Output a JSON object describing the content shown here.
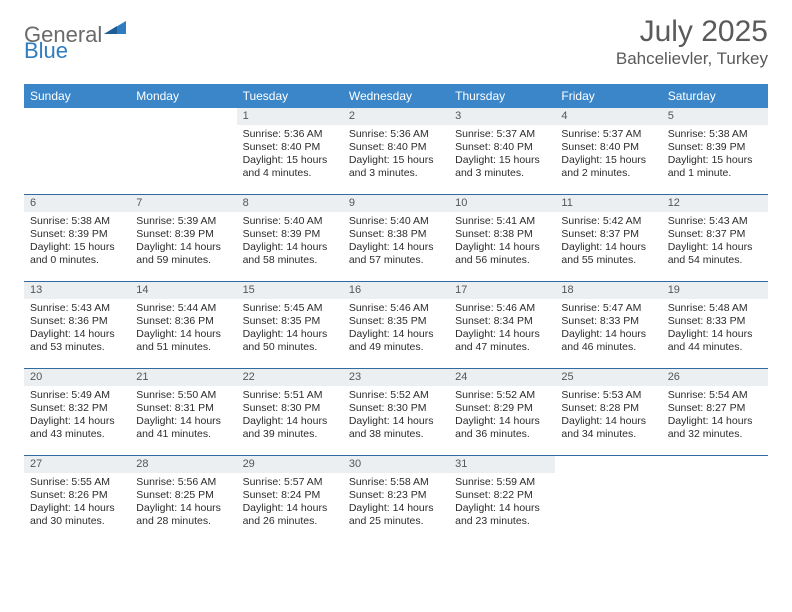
{
  "logo": {
    "general": "General",
    "blue": "Blue"
  },
  "title": {
    "month": "July 2025",
    "location": "Bahcelievler, Turkey"
  },
  "colors": {
    "header_bg": "#3a86c8",
    "header_text": "#ffffff",
    "row_divider": "#2f6aa3",
    "daynum_bg": "#eceff1",
    "body_text": "#2c2c2c",
    "logo_gray": "#6a6a6a",
    "logo_blue": "#2f7dc0",
    "title_text": "#5a5a5a"
  },
  "weekdays": [
    "Sunday",
    "Monday",
    "Tuesday",
    "Wednesday",
    "Thursday",
    "Friday",
    "Saturday"
  ],
  "weeks": [
    [
      null,
      null,
      {
        "n": "1",
        "sr": "Sunrise: 5:36 AM",
        "ss": "Sunset: 8:40 PM",
        "d1": "Daylight: 15 hours",
        "d2": "and 4 minutes."
      },
      {
        "n": "2",
        "sr": "Sunrise: 5:36 AM",
        "ss": "Sunset: 8:40 PM",
        "d1": "Daylight: 15 hours",
        "d2": "and 3 minutes."
      },
      {
        "n": "3",
        "sr": "Sunrise: 5:37 AM",
        "ss": "Sunset: 8:40 PM",
        "d1": "Daylight: 15 hours",
        "d2": "and 3 minutes."
      },
      {
        "n": "4",
        "sr": "Sunrise: 5:37 AM",
        "ss": "Sunset: 8:40 PM",
        "d1": "Daylight: 15 hours",
        "d2": "and 2 minutes."
      },
      {
        "n": "5",
        "sr": "Sunrise: 5:38 AM",
        "ss": "Sunset: 8:39 PM",
        "d1": "Daylight: 15 hours",
        "d2": "and 1 minute."
      }
    ],
    [
      {
        "n": "6",
        "sr": "Sunrise: 5:38 AM",
        "ss": "Sunset: 8:39 PM",
        "d1": "Daylight: 15 hours",
        "d2": "and 0 minutes."
      },
      {
        "n": "7",
        "sr": "Sunrise: 5:39 AM",
        "ss": "Sunset: 8:39 PM",
        "d1": "Daylight: 14 hours",
        "d2": "and 59 minutes."
      },
      {
        "n": "8",
        "sr": "Sunrise: 5:40 AM",
        "ss": "Sunset: 8:39 PM",
        "d1": "Daylight: 14 hours",
        "d2": "and 58 minutes."
      },
      {
        "n": "9",
        "sr": "Sunrise: 5:40 AM",
        "ss": "Sunset: 8:38 PM",
        "d1": "Daylight: 14 hours",
        "d2": "and 57 minutes."
      },
      {
        "n": "10",
        "sr": "Sunrise: 5:41 AM",
        "ss": "Sunset: 8:38 PM",
        "d1": "Daylight: 14 hours",
        "d2": "and 56 minutes."
      },
      {
        "n": "11",
        "sr": "Sunrise: 5:42 AM",
        "ss": "Sunset: 8:37 PM",
        "d1": "Daylight: 14 hours",
        "d2": "and 55 minutes."
      },
      {
        "n": "12",
        "sr": "Sunrise: 5:43 AM",
        "ss": "Sunset: 8:37 PM",
        "d1": "Daylight: 14 hours",
        "d2": "and 54 minutes."
      }
    ],
    [
      {
        "n": "13",
        "sr": "Sunrise: 5:43 AM",
        "ss": "Sunset: 8:36 PM",
        "d1": "Daylight: 14 hours",
        "d2": "and 53 minutes."
      },
      {
        "n": "14",
        "sr": "Sunrise: 5:44 AM",
        "ss": "Sunset: 8:36 PM",
        "d1": "Daylight: 14 hours",
        "d2": "and 51 minutes."
      },
      {
        "n": "15",
        "sr": "Sunrise: 5:45 AM",
        "ss": "Sunset: 8:35 PM",
        "d1": "Daylight: 14 hours",
        "d2": "and 50 minutes."
      },
      {
        "n": "16",
        "sr": "Sunrise: 5:46 AM",
        "ss": "Sunset: 8:35 PM",
        "d1": "Daylight: 14 hours",
        "d2": "and 49 minutes."
      },
      {
        "n": "17",
        "sr": "Sunrise: 5:46 AM",
        "ss": "Sunset: 8:34 PM",
        "d1": "Daylight: 14 hours",
        "d2": "and 47 minutes."
      },
      {
        "n": "18",
        "sr": "Sunrise: 5:47 AM",
        "ss": "Sunset: 8:33 PM",
        "d1": "Daylight: 14 hours",
        "d2": "and 46 minutes."
      },
      {
        "n": "19",
        "sr": "Sunrise: 5:48 AM",
        "ss": "Sunset: 8:33 PM",
        "d1": "Daylight: 14 hours",
        "d2": "and 44 minutes."
      }
    ],
    [
      {
        "n": "20",
        "sr": "Sunrise: 5:49 AM",
        "ss": "Sunset: 8:32 PM",
        "d1": "Daylight: 14 hours",
        "d2": "and 43 minutes."
      },
      {
        "n": "21",
        "sr": "Sunrise: 5:50 AM",
        "ss": "Sunset: 8:31 PM",
        "d1": "Daylight: 14 hours",
        "d2": "and 41 minutes."
      },
      {
        "n": "22",
        "sr": "Sunrise: 5:51 AM",
        "ss": "Sunset: 8:30 PM",
        "d1": "Daylight: 14 hours",
        "d2": "and 39 minutes."
      },
      {
        "n": "23",
        "sr": "Sunrise: 5:52 AM",
        "ss": "Sunset: 8:30 PM",
        "d1": "Daylight: 14 hours",
        "d2": "and 38 minutes."
      },
      {
        "n": "24",
        "sr": "Sunrise: 5:52 AM",
        "ss": "Sunset: 8:29 PM",
        "d1": "Daylight: 14 hours",
        "d2": "and 36 minutes."
      },
      {
        "n": "25",
        "sr": "Sunrise: 5:53 AM",
        "ss": "Sunset: 8:28 PM",
        "d1": "Daylight: 14 hours",
        "d2": "and 34 minutes."
      },
      {
        "n": "26",
        "sr": "Sunrise: 5:54 AM",
        "ss": "Sunset: 8:27 PM",
        "d1": "Daylight: 14 hours",
        "d2": "and 32 minutes."
      }
    ],
    [
      {
        "n": "27",
        "sr": "Sunrise: 5:55 AM",
        "ss": "Sunset: 8:26 PM",
        "d1": "Daylight: 14 hours",
        "d2": "and 30 minutes."
      },
      {
        "n": "28",
        "sr": "Sunrise: 5:56 AM",
        "ss": "Sunset: 8:25 PM",
        "d1": "Daylight: 14 hours",
        "d2": "and 28 minutes."
      },
      {
        "n": "29",
        "sr": "Sunrise: 5:57 AM",
        "ss": "Sunset: 8:24 PM",
        "d1": "Daylight: 14 hours",
        "d2": "and 26 minutes."
      },
      {
        "n": "30",
        "sr": "Sunrise: 5:58 AM",
        "ss": "Sunset: 8:23 PM",
        "d1": "Daylight: 14 hours",
        "d2": "and 25 minutes."
      },
      {
        "n": "31",
        "sr": "Sunrise: 5:59 AM",
        "ss": "Sunset: 8:22 PM",
        "d1": "Daylight: 14 hours",
        "d2": "and 23 minutes."
      },
      null,
      null
    ]
  ]
}
